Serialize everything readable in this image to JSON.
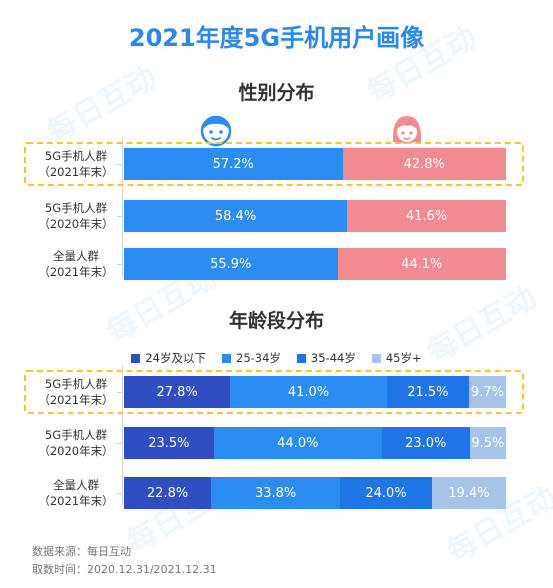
{
  "title": "2021年度5G手机用户画像",
  "watermark": "每日互动",
  "colors": {
    "male": "#2b8cf2",
    "female": "#f28a92",
    "age_24_below": "#2f4ec2",
    "age_25_34": "#2b8cf2",
    "age_35_44": "#1f74e6",
    "age_45_plus": "#a6c3ea",
    "title": "#2b87ea",
    "highlight": "#f4c43a"
  },
  "icons": {
    "male": "boy-face-icon",
    "female": "girl-face-icon"
  },
  "source": {
    "line1": "数据来源：每日互动",
    "line2": "取数时间：2020.12.31/2021.12.31"
  },
  "chart_data": [
    {
      "type": "bar",
      "orientation": "horizontal-stacked-100",
      "title": "性别分布",
      "categories": [
        {
          "line1": "5G手机人群",
          "line2": "（2021年末）"
        },
        {
          "line1": "5G手机人群",
          "line2": "（2020年末）"
        },
        {
          "line1": "全量人群",
          "line2": "（2021年末）"
        }
      ],
      "highlighted_category": 0,
      "series": [
        {
          "key": "male",
          "values": [
            57.2,
            58.4,
            55.9
          ],
          "labels": [
            "57.2%",
            "58.4%",
            "55.9%"
          ]
        },
        {
          "key": "female",
          "values": [
            42.8,
            41.6,
            44.1
          ],
          "labels": [
            "42.8%",
            "41.6%",
            "44.1%"
          ]
        }
      ]
    },
    {
      "type": "bar",
      "orientation": "horizontal-stacked-100",
      "title": "年龄段分布",
      "legend_position": "top",
      "categories": [
        {
          "line1": "5G手机人群",
          "line2": "（2021年末）"
        },
        {
          "line1": "5G手机人群",
          "line2": "（2020年末）"
        },
        {
          "line1": "全量人群",
          "line2": "（2021年末）"
        }
      ],
      "highlighted_category": 0,
      "series": [
        {
          "key": "age_24_below",
          "name": "24岁及以下",
          "values": [
            27.8,
            23.5,
            22.8
          ],
          "labels": [
            "27.8%",
            "23.5%",
            "22.8%"
          ]
        },
        {
          "key": "age_25_34",
          "name": "25-34岁",
          "values": [
            41.0,
            44.0,
            33.8
          ],
          "labels": [
            "41.0%",
            "44.0%",
            "33.8%"
          ]
        },
        {
          "key": "age_35_44",
          "name": "35-44岁",
          "values": [
            21.5,
            23.0,
            24.0
          ],
          "labels": [
            "21.5%",
            "23.0%",
            "24.0%"
          ]
        },
        {
          "key": "age_45_plus",
          "name": "45岁+",
          "values": [
            9.7,
            9.5,
            19.4
          ],
          "labels": [
            "9.7%",
            "9.5%",
            "19.4%"
          ]
        }
      ]
    }
  ]
}
